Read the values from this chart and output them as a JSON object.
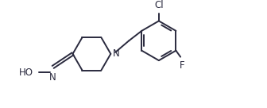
{
  "background_color": "#ffffff",
  "line_color": "#2a2a3e",
  "line_width": 1.4,
  "label_fontsize": 8.5,
  "fig_width": 3.36,
  "fig_height": 1.36,
  "dpi": 100,
  "xlim": [
    0,
    10.5
  ],
  "ylim": [
    0,
    4.0
  ]
}
